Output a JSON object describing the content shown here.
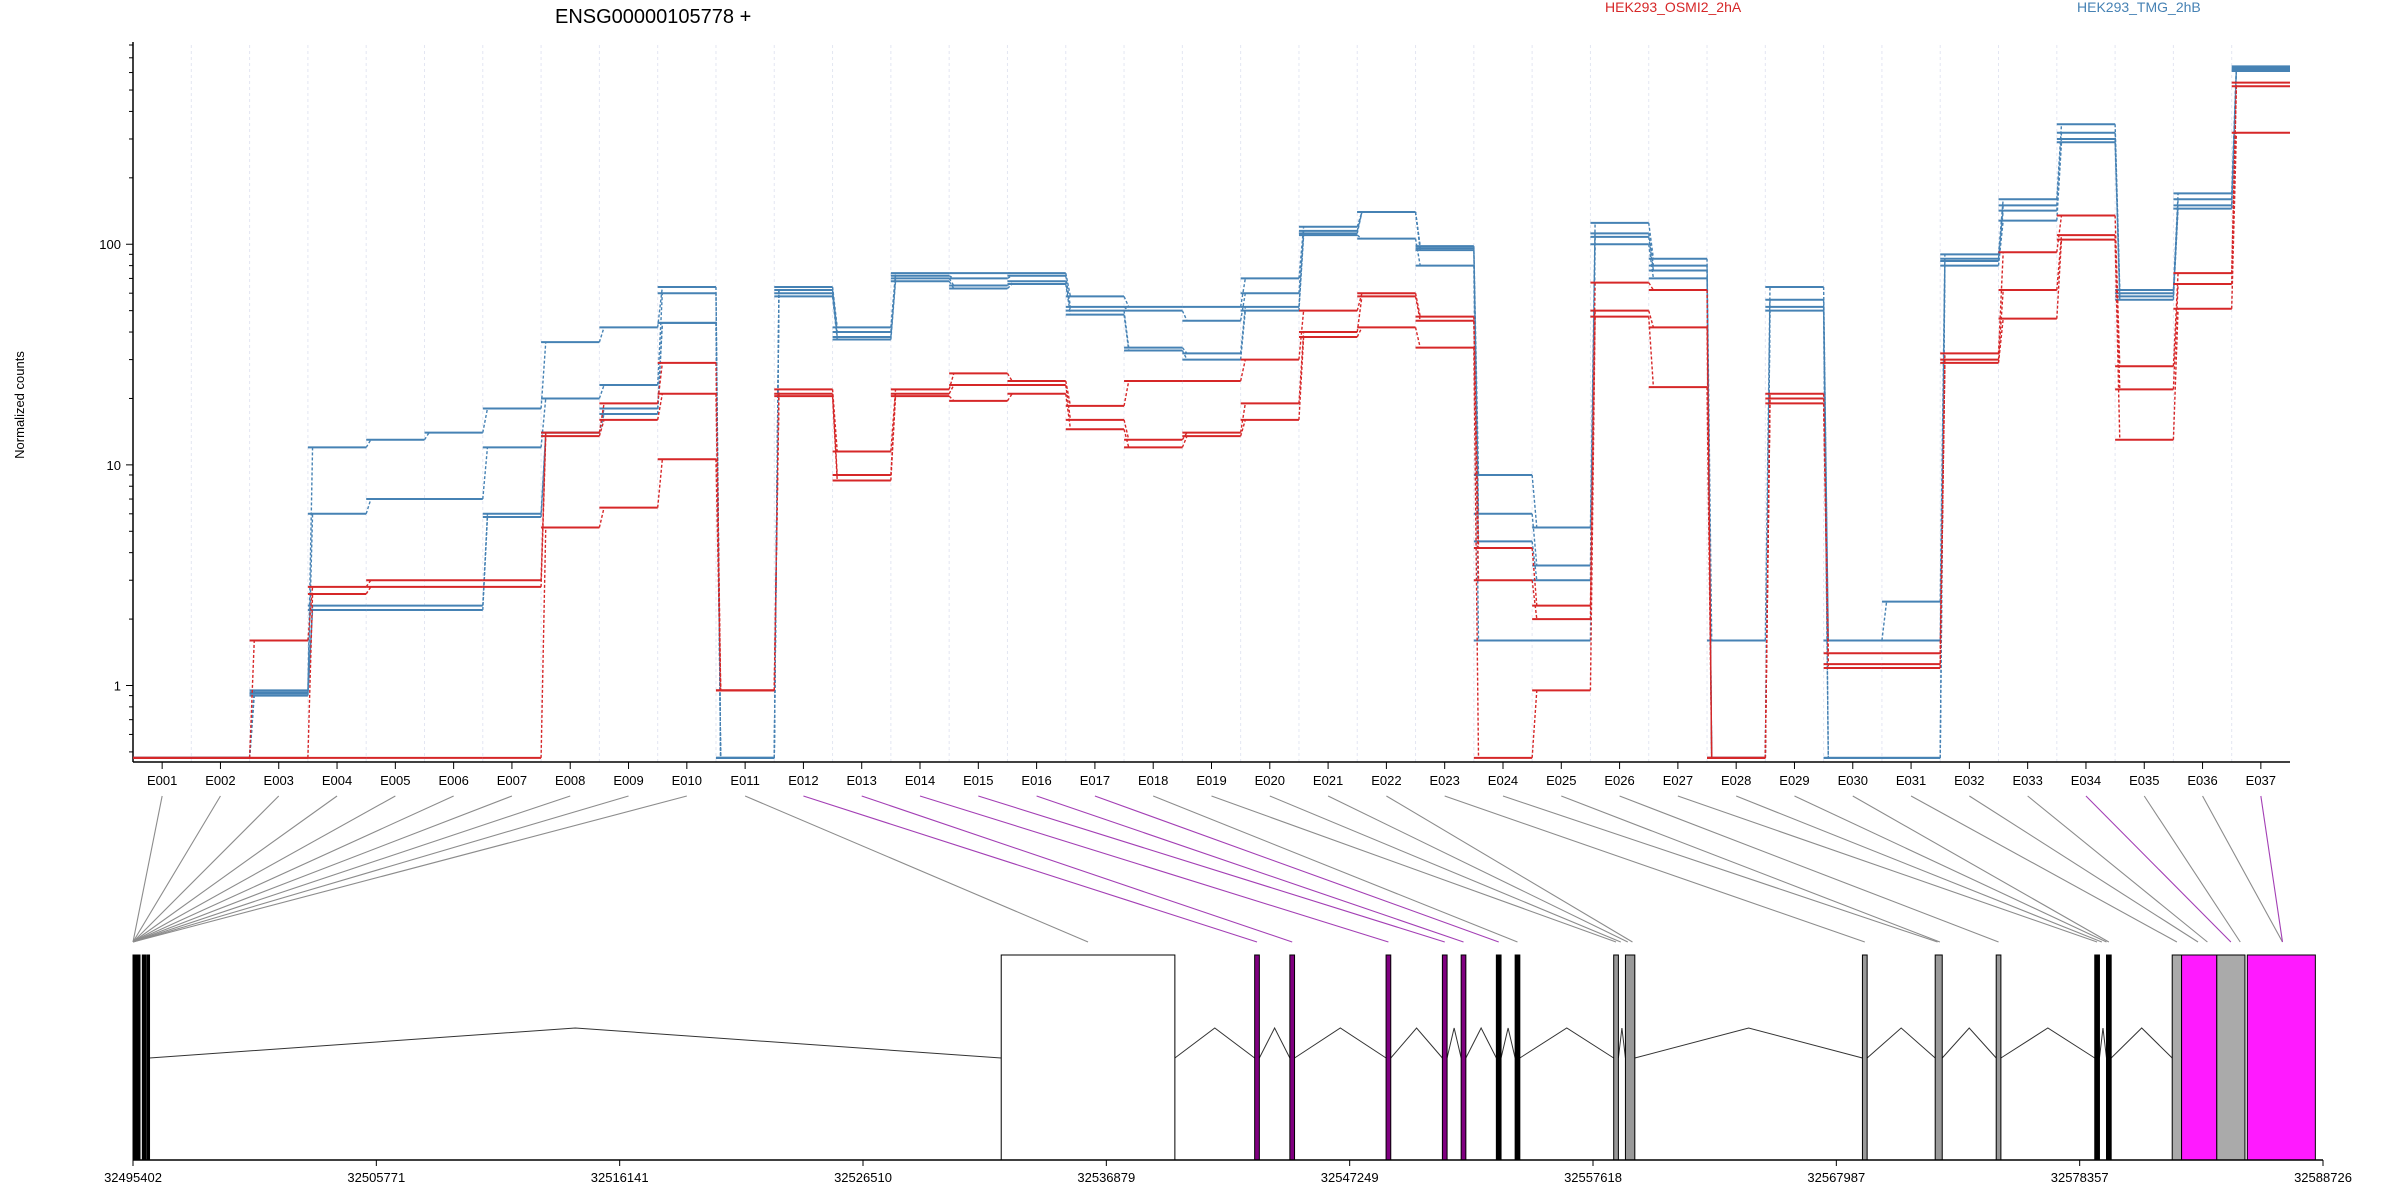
{
  "chart_data": {
    "type": "line",
    "title": "ENSG00000105778 +",
    "ylabel": "Normalized counts",
    "yscale": "log",
    "yticks": [
      1,
      10,
      100
    ],
    "ylim": [
      0.45,
      800
    ],
    "legend": [
      {
        "name": "HEK293_OSMI2_2hA",
        "color": "#d62728"
      },
      {
        "name": "HEK293_TMG_2hB",
        "color": "#4682b4"
      }
    ],
    "legend_placement": "top-right",
    "grid": "vertical dashed",
    "categories": [
      "E001",
      "E002",
      "E003",
      "E004",
      "E005",
      "E006",
      "E007",
      "E008",
      "E009",
      "E010",
      "E011",
      "E012",
      "E013",
      "E014",
      "E015",
      "E016",
      "E017",
      "E018",
      "E019",
      "E020",
      "E021",
      "E022",
      "E023",
      "E024",
      "E025",
      "E026",
      "E027",
      "E028",
      "E029",
      "E030",
      "E031",
      "E032",
      "E033",
      "E034",
      "E035",
      "E036",
      "E037"
    ],
    "series": [
      {
        "group": "HEK293_TMG_2hB",
        "values": [
          0.47,
          0.47,
          0.95,
          12,
          13,
          14,
          18,
          36,
          42,
          64,
          0.47,
          64,
          42,
          74,
          74,
          74,
          58,
          52,
          52,
          70,
          120,
          140,
          98,
          9,
          5.2,
          125,
          86,
          1.6,
          64,
          1.6,
          2.4,
          90,
          160,
          350,
          62,
          170,
          640
        ]
      },
      {
        "group": "HEK293_TMG_2hB",
        "values": [
          0.47,
          0.47,
          0.93,
          6,
          7,
          7,
          12,
          20,
          23,
          60,
          0.47,
          62,
          40,
          72,
          70,
          72,
          52,
          50,
          45,
          60,
          115,
          140,
          96,
          6,
          3.5,
          112,
          80,
          0.47,
          56,
          1.6,
          1.6,
          86,
          150,
          320,
          60,
          160,
          630
        ]
      },
      {
        "group": "HEK293_TMG_2hB",
        "values": [
          0.47,
          0.47,
          0.92,
          2.3,
          2.3,
          2.3,
          6,
          14,
          17,
          44,
          0.47,
          60,
          38,
          70,
          65,
          68,
          50,
          34,
          32,
          52,
          112,
          140,
          94,
          4.5,
          3,
          108,
          76,
          0.47,
          52,
          0.47,
          0.47,
          84,
          142,
          300,
          58,
          150,
          620
        ]
      },
      {
        "group": "HEK293_TMG_2hB",
        "values": [
          0.47,
          0.47,
          0.9,
          2.2,
          2.2,
          2.2,
          5.8,
          14,
          18,
          44,
          0.47,
          58,
          37,
          68,
          63,
          66,
          48,
          33,
          30,
          50,
          110,
          106,
          80,
          1.6,
          1.6,
          100,
          70,
          0.47,
          50,
          0.47,
          0.47,
          80,
          128,
          290,
          56,
          145,
          610
        ]
      },
      {
        "group": "HEK293_OSMI2_2hA",
        "values": [
          0.47,
          0.47,
          1.6,
          2.8,
          3,
          3,
          3,
          14,
          19,
          29,
          0.95,
          22,
          11.5,
          22,
          26,
          24,
          18.5,
          24,
          24,
          30,
          50,
          60,
          47,
          4.2,
          2.3,
          67,
          62,
          0.47,
          21,
          1.4,
          1.4,
          32,
          92,
          135,
          28,
          74,
          540
        ]
      },
      {
        "group": "HEK293_OSMI2_2hA",
        "values": [
          0.47,
          0.47,
          0.47,
          2.6,
          2.8,
          2.8,
          2.8,
          13.5,
          16,
          21,
          0.95,
          21,
          9,
          21,
          23,
          23,
          16,
          13,
          14,
          19,
          40,
          58,
          45,
          3,
          2,
          50,
          42,
          0.47,
          20,
          1.25,
          1.25,
          30,
          62,
          110,
          22,
          66,
          520
        ]
      },
      {
        "group": "HEK293_OSMI2_2hA",
        "values": [
          0.47,
          0.47,
          0.47,
          0.47,
          0.47,
          0.47,
          0.47,
          5.2,
          6.4,
          10.6,
          0.95,
          20.5,
          8.5,
          20.5,
          19.5,
          21,
          14.5,
          12,
          13.5,
          16,
          38,
          42,
          34,
          0.47,
          0.95,
          47,
          22.5,
          0.47,
          19,
          1.2,
          1.2,
          29,
          46,
          105,
          13,
          51,
          320
        ]
      }
    ],
    "genome": {
      "chromosome_ticks": [
        "32495402",
        "32505771",
        "32516141",
        "32526510",
        "32536879",
        "32547249",
        "32557618",
        "32567987",
        "32578357",
        "32588726"
      ]
    }
  }
}
